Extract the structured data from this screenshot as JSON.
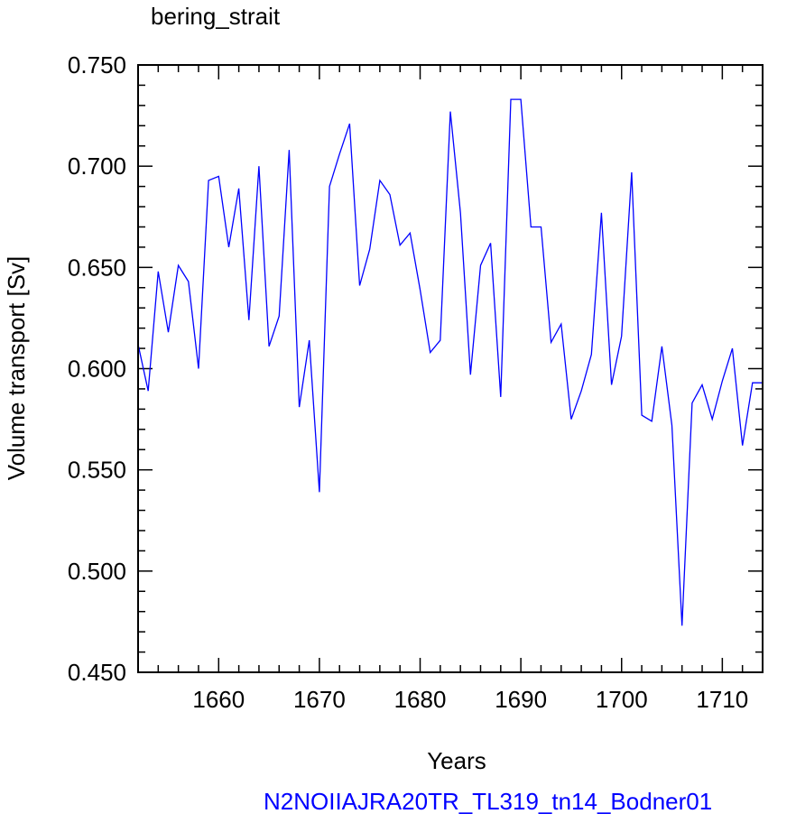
{
  "title": "bering_strait",
  "case_name": "N2NOIIAJRA20TR_TL319_tn14_Bodner01",
  "colors": {
    "series": "#0000ff",
    "case_label": "#0000ff",
    "axes": "#000000"
  },
  "chart_data": {
    "type": "line",
    "title": "bering_strait",
    "xlabel": "Years",
    "ylabel": "Volume transport [Sv]",
    "xlim": [
      1652,
      1714
    ],
    "ylim": [
      0.45,
      0.75
    ],
    "xticks": [
      1660,
      1670,
      1680,
      1690,
      1700,
      1710
    ],
    "xtick_labels": [
      "1660",
      "1670",
      "1680",
      "1690",
      "1700",
      "1710"
    ],
    "yticks": [
      0.45,
      0.5,
      0.55,
      0.6,
      0.65,
      0.7,
      0.75
    ],
    "ytick_labels": [
      "0.450",
      "0.500",
      "0.550",
      "0.600",
      "0.650",
      "0.700",
      "0.750"
    ],
    "grid": false,
    "series": [
      {
        "color": "#0000ff",
        "x": [
          1652,
          1653,
          1654,
          1655,
          1656,
          1657,
          1658,
          1659,
          1660,
          1661,
          1662,
          1663,
          1664,
          1665,
          1666,
          1667,
          1668,
          1669,
          1670,
          1671,
          1672,
          1673,
          1674,
          1675,
          1676,
          1677,
          1678,
          1679,
          1680,
          1681,
          1682,
          1683,
          1684,
          1685,
          1686,
          1687,
          1688,
          1689,
          1690,
          1691,
          1692,
          1693,
          1694,
          1695,
          1696,
          1697,
          1698,
          1699,
          1700,
          1701,
          1702,
          1703,
          1704,
          1705,
          1706,
          1707,
          1708,
          1709,
          1710,
          1711,
          1712,
          1713,
          1714
        ],
        "y": [
          0.612,
          0.589,
          0.648,
          0.618,
          0.651,
          0.643,
          0.6,
          0.693,
          0.695,
          0.66,
          0.689,
          0.624,
          0.7,
          0.611,
          0.626,
          0.708,
          0.581,
          0.614,
          0.539,
          0.69,
          0.706,
          0.721,
          0.641,
          0.659,
          0.693,
          0.686,
          0.661,
          0.667,
          0.639,
          0.608,
          0.614,
          0.727,
          0.677,
          0.597,
          0.651,
          0.662,
          0.586,
          0.733,
          0.733,
          0.67,
          0.67,
          0.613,
          0.622,
          0.575,
          0.589,
          0.607,
          0.677,
          0.592,
          0.616,
          0.697,
          0.577,
          0.574,
          0.611,
          0.572,
          0.473,
          0.583,
          0.592,
          0.575,
          0.594,
          0.61,
          0.562,
          0.593,
          0.593
        ]
      }
    ]
  }
}
